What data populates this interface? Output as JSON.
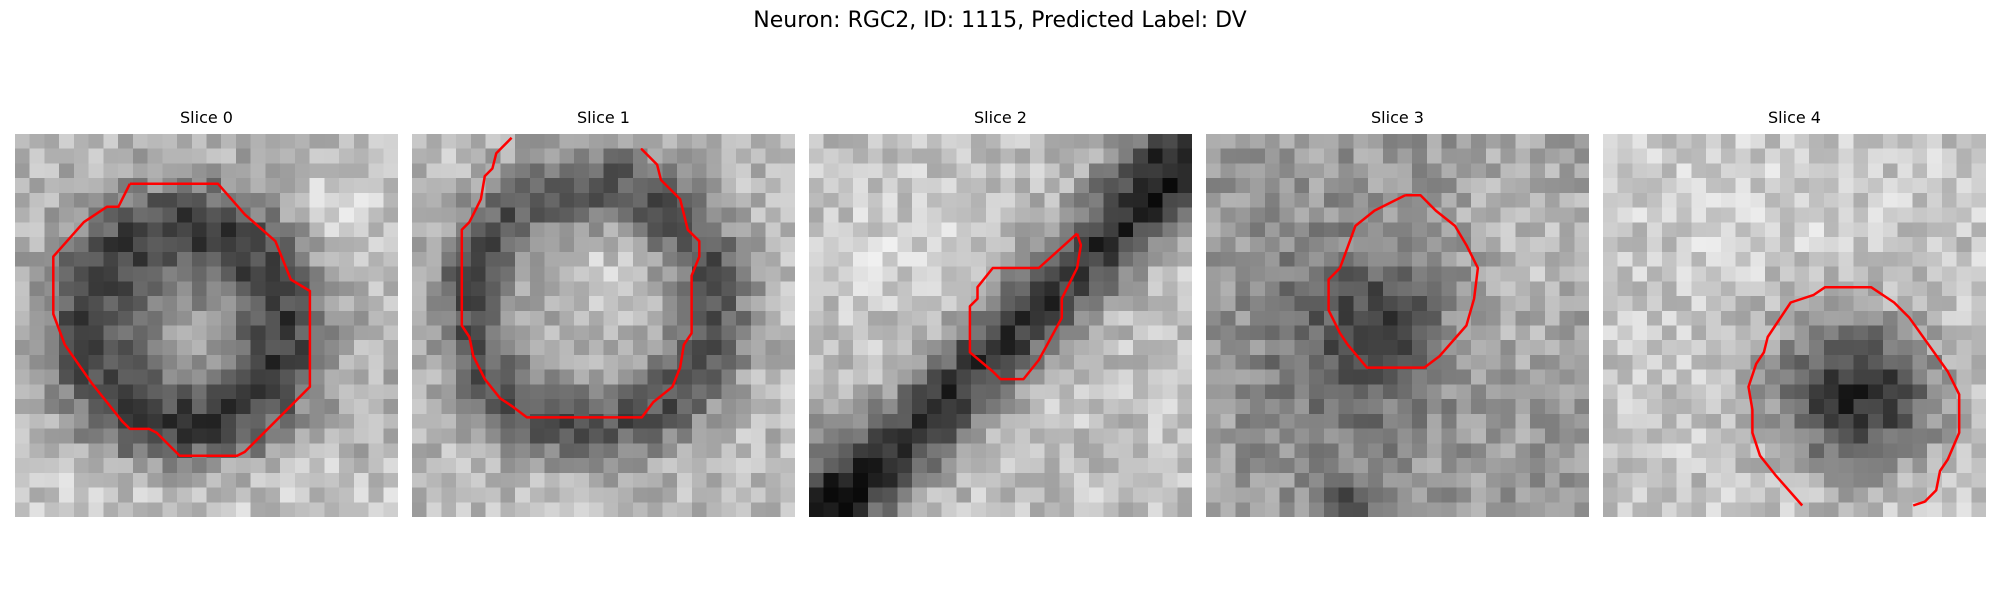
{
  "figure": {
    "title": "Neuron: RGC2, ID: 1115, Predicted Label: DV"
  },
  "colors": {
    "contour": "#ff0000",
    "colormap": "grayscale"
  },
  "panels": [
    {
      "title": "Slice 0"
    },
    {
      "title": "Slice 1"
    },
    {
      "title": "Slice 2"
    },
    {
      "title": "Slice 3"
    },
    {
      "title": "Slice 4"
    }
  ]
}
